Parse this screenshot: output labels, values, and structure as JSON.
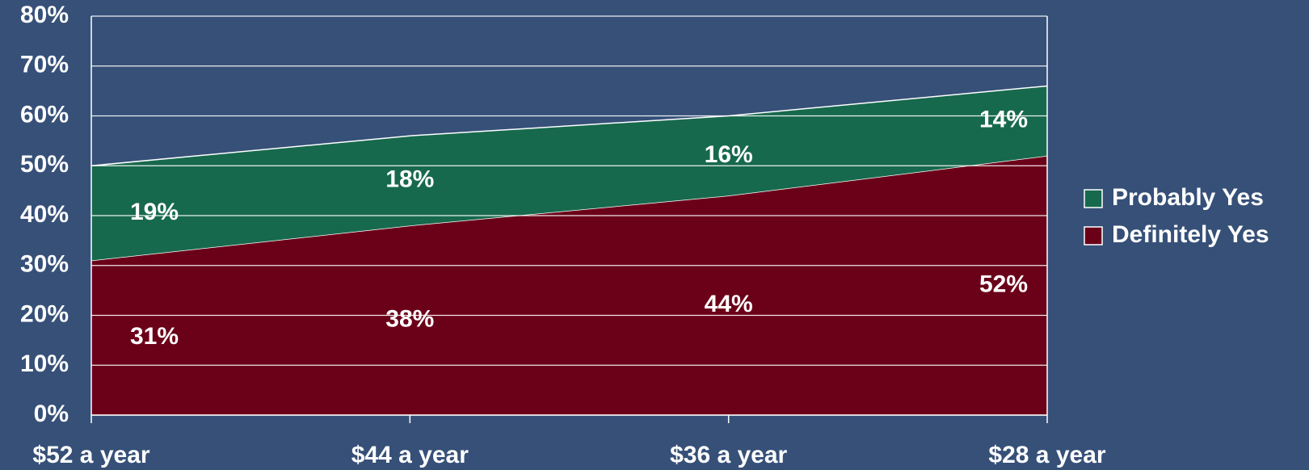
{
  "chart_data": {
    "type": "stacked_area",
    "categories": [
      "$52 a year",
      "$44 a year",
      "$36 a year",
      "$28 a year"
    ],
    "series": [
      {
        "name": "Definitely Yes",
        "color": "#6b0019",
        "values": [
          31,
          38,
          44,
          52
        ],
        "value_labels": [
          "31%",
          "38%",
          "44%",
          "52%"
        ]
      },
      {
        "name": "Probably Yes",
        "color": "#17694d",
        "values": [
          19,
          18,
          16,
          14
        ],
        "value_labels": [
          "19%",
          "18%",
          "16%",
          "14%"
        ]
      }
    ],
    "ylim": [
      0,
      80
    ],
    "yticks": [
      {
        "value": 0,
        "label": "0%"
      },
      {
        "value": 10,
        "label": "10%"
      },
      {
        "value": 20,
        "label": "20%"
      },
      {
        "value": 30,
        "label": "30%"
      },
      {
        "value": 40,
        "label": "40%"
      },
      {
        "value": 50,
        "label": "50%"
      },
      {
        "value": 60,
        "label": "60%"
      },
      {
        "value": 70,
        "label": "70%"
      },
      {
        "value": 80,
        "label": "80%"
      }
    ],
    "grid": true,
    "legend": "right"
  }
}
